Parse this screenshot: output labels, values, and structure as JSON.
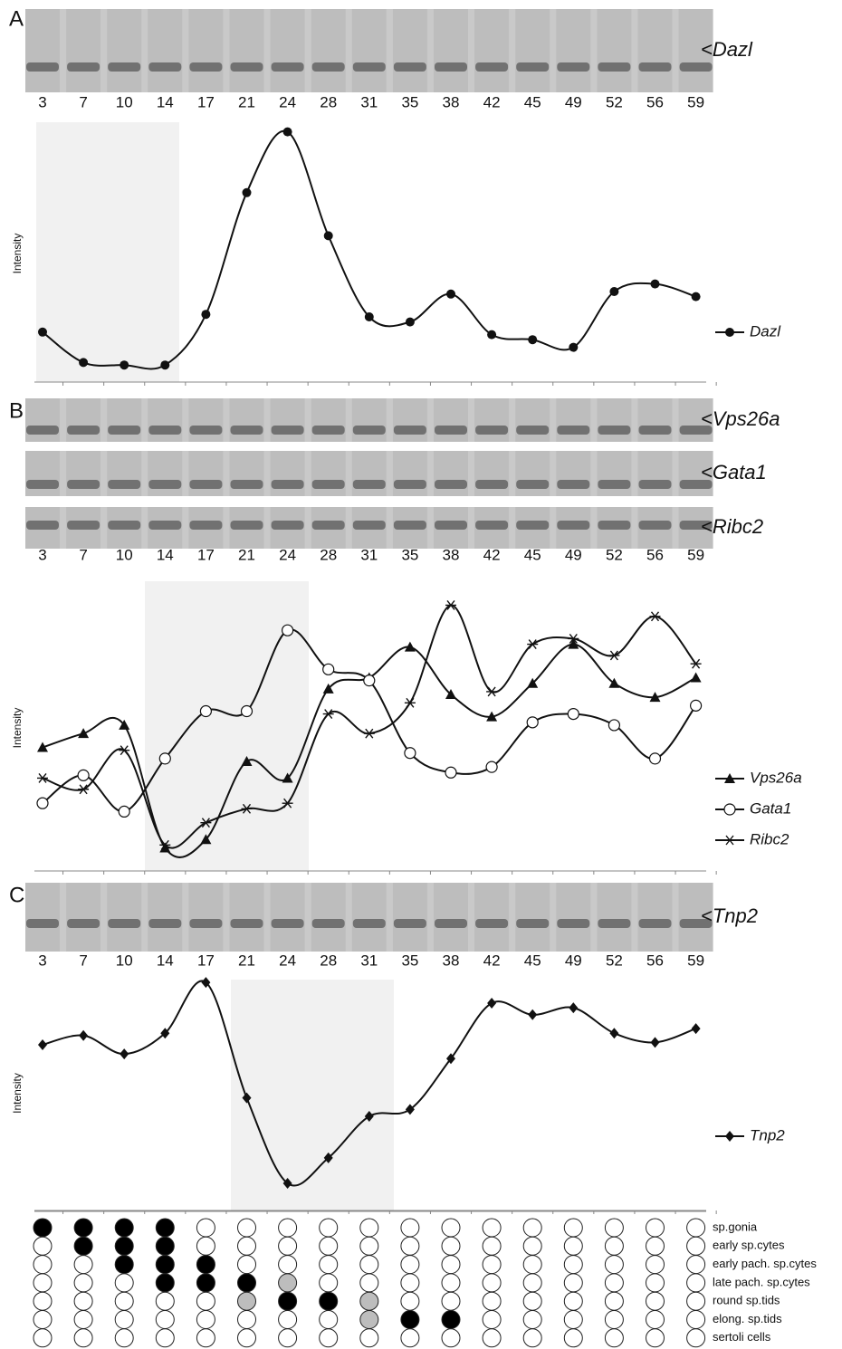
{
  "chart_data": [
    {
      "type": "line",
      "panel": "A",
      "gel_labels": [
        "<Dazl"
      ],
      "y_label": "Intensity",
      "categories": [
        "3",
        "7",
        "10",
        "14",
        "17",
        "21",
        "24",
        "28",
        "31",
        "35",
        "38",
        "42",
        "45",
        "49",
        "52",
        "56",
        "59"
      ],
      "ylim": [
        0,
        100
      ],
      "series": [
        {
          "name": "Dazl",
          "color": "#111111",
          "marker": "dot",
          "values": [
            19,
            7,
            6,
            6,
            26,
            74,
            98,
            57,
            25,
            23,
            34,
            18,
            16,
            13,
            35,
            38,
            33
          ]
        }
      ]
    },
    {
      "type": "line",
      "panel": "B",
      "gel_labels": [
        "<Vps26a",
        "<Gata1",
        "<Ribc2"
      ],
      "y_label": "Intensity",
      "categories": [
        "3",
        "7",
        "10",
        "14",
        "17",
        "21",
        "24",
        "28",
        "31",
        "35",
        "38",
        "42",
        "45",
        "49",
        "52",
        "56",
        "59"
      ],
      "ylim": [
        0,
        100
      ],
      "series": [
        {
          "name": "Vps26a",
          "color": "#111111",
          "marker": "triangle",
          "values": [
            43,
            48,
            51,
            7,
            10,
            38,
            32,
            64,
            68,
            79,
            62,
            54,
            66,
            80,
            66,
            61,
            68
          ]
        },
        {
          "name": "Gata1",
          "color": "#111111",
          "marker": "open-circle",
          "values": [
            23,
            33,
            20,
            39,
            56,
            56,
            85,
            71,
            67,
            41,
            34,
            36,
            52,
            55,
            51,
            39,
            58
          ]
        },
        {
          "name": "Ribc2",
          "color": "#111111",
          "marker": "asterisk",
          "values": [
            32,
            28,
            42,
            8,
            16,
            21,
            23,
            55,
            48,
            59,
            94,
            63,
            80,
            82,
            76,
            90,
            73
          ]
        }
      ]
    },
    {
      "type": "line",
      "panel": "C",
      "gel_labels": [
        "<Tnp2"
      ],
      "y_label": "Intensity",
      "categories": [
        "3",
        "7",
        "10",
        "14",
        "17",
        "21",
        "24",
        "28",
        "31",
        "35",
        "38",
        "42",
        "45",
        "49",
        "52",
        "56",
        "59"
      ],
      "ylim": [
        0,
        100
      ],
      "series": [
        {
          "name": "Tnp2",
          "color": "#111111",
          "marker": "diamond",
          "values": [
            71,
            75,
            67,
            76,
            98,
            48,
            11,
            22,
            40,
            43,
            65,
            89,
            84,
            87,
            76,
            72,
            78
          ]
        }
      ]
    }
  ],
  "cell_table": {
    "rows": [
      "sp.gonia",
      "early sp.cytes",
      "early pach. sp.cytes",
      "late pach. sp.cytes",
      "round sp.tids",
      "elong. sp.tids",
      "sertoli cells"
    ],
    "states": [
      [
        "black",
        "black",
        "black",
        "black",
        "white",
        "white",
        "white",
        "white",
        "white",
        "white",
        "white",
        "white",
        "white",
        "white",
        "white",
        "white",
        "white"
      ],
      [
        "white",
        "black",
        "black",
        "black",
        "white",
        "white",
        "white",
        "white",
        "white",
        "white",
        "white",
        "white",
        "white",
        "white",
        "white",
        "white",
        "white"
      ],
      [
        "white",
        "white",
        "black",
        "black",
        "black",
        "white",
        "white",
        "white",
        "white",
        "white",
        "white",
        "white",
        "white",
        "white",
        "white",
        "white",
        "white"
      ],
      [
        "white",
        "white",
        "white",
        "black",
        "black",
        "black",
        "gray",
        "white",
        "white",
        "white",
        "white",
        "white",
        "white",
        "white",
        "white",
        "white",
        "white"
      ],
      [
        "white",
        "white",
        "white",
        "white",
        "white",
        "gray",
        "black",
        "black",
        "gray",
        "white",
        "white",
        "white",
        "white",
        "white",
        "white",
        "white",
        "white"
      ],
      [
        "white",
        "white",
        "white",
        "white",
        "white",
        "white",
        "white",
        "white",
        "gray",
        "black",
        "black",
        "white",
        "white",
        "white",
        "white",
        "white",
        "white"
      ],
      [
        "white",
        "white",
        "white",
        "white",
        "white",
        "white",
        "white",
        "white",
        "white",
        "white",
        "white",
        "white",
        "white",
        "white",
        "white",
        "white",
        "white"
      ]
    ]
  }
}
